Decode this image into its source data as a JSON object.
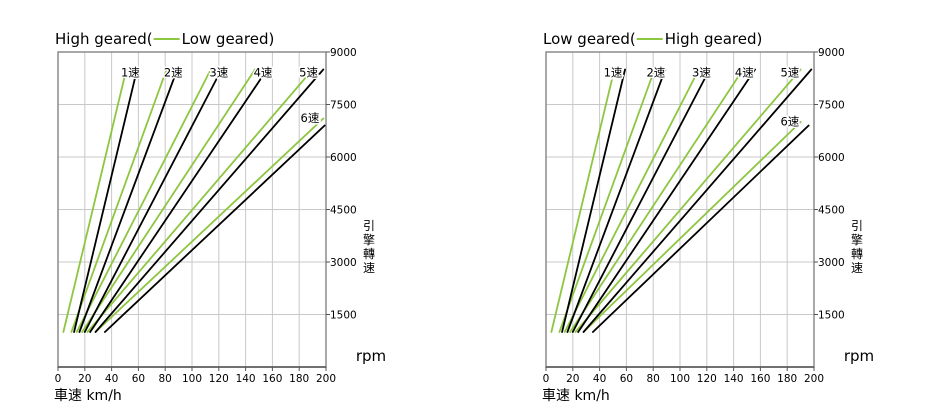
{
  "colors": {
    "high_geared": "#000000",
    "low_geared": "#8dc63f",
    "grid": "#c8c8c8",
    "frame": "#8c8c8c"
  },
  "chart_data": [
    {
      "type": "line",
      "title_primary": "High geared(",
      "title_secondary": "Low geared)",
      "xlabel": "車速 km/h",
      "ylabel_chars": [
        "引",
        "擎",
        "轉",
        "速"
      ],
      "ylabel_unit": "rpm",
      "xlim": [
        0,
        200
      ],
      "ylim": [
        0,
        9000
      ],
      "xticks": [
        "0",
        "20",
        "40",
        "60",
        "80",
        "100",
        "120",
        "140",
        "160",
        "180",
        "200"
      ],
      "yticks": [
        "1500",
        "3000",
        "4500",
        "6000",
        "7500",
        "9000"
      ],
      "grid": true,
      "gear_labels": [
        {
          "text": "1速",
          "x": 54,
          "y": 8300
        },
        {
          "text": "2速",
          "x": 86,
          "y": 8300
        },
        {
          "text": "3速",
          "x": 120,
          "y": 8300
        },
        {
          "text": "4速",
          "x": 153,
          "y": 8300
        },
        {
          "text": "5速",
          "x": 187,
          "y": 8300
        },
        {
          "text": "6速",
          "x": 188,
          "y": 7000
        }
      ],
      "series": [
        {
          "group": "high",
          "gear": "1速",
          "x": [
            12,
            59
          ],
          "y": [
            1000,
            8500
          ]
        },
        {
          "group": "high",
          "gear": "2速",
          "x": [
            16,
            89
          ],
          "y": [
            1000,
            8500
          ]
        },
        {
          "group": "high",
          "gear": "3速",
          "x": [
            20,
            122
          ],
          "y": [
            1000,
            8500
          ]
        },
        {
          "group": "high",
          "gear": "4速",
          "x": [
            24,
            156
          ],
          "y": [
            1000,
            8500
          ]
        },
        {
          "group": "high",
          "gear": "5速",
          "x": [
            28,
            198
          ],
          "y": [
            1000,
            8500
          ]
        },
        {
          "group": "high",
          "gear": "6速",
          "x": [
            35,
            199
          ],
          "y": [
            1000,
            6900
          ]
        },
        {
          "group": "low",
          "gear": "1速",
          "x": [
            4,
            51
          ],
          "y": [
            1000,
            8500
          ]
        },
        {
          "group": "low",
          "gear": "2速",
          "x": [
            10,
            81
          ],
          "y": [
            1000,
            8500
          ]
        },
        {
          "group": "low",
          "gear": "3速",
          "x": [
            14,
            114
          ],
          "y": [
            1000,
            8500
          ]
        },
        {
          "group": "low",
          "gear": "4速",
          "x": [
            18,
            147
          ],
          "y": [
            1000,
            8500
          ]
        },
        {
          "group": "low",
          "gear": "5速",
          "x": [
            22,
            190
          ],
          "y": [
            1000,
            8500
          ]
        },
        {
          "group": "low",
          "gear": "6速",
          "x": [
            28,
            198
          ],
          "y": [
            1000,
            7100
          ]
        }
      ]
    },
    {
      "type": "line",
      "title_primary": "Low geared(",
      "title_secondary": "High geared)",
      "xlabel": "車速 km/h",
      "ylabel_chars": [
        "引",
        "擎",
        "轉",
        "速"
      ],
      "ylabel_unit": "rpm",
      "xlim": [
        0,
        200
      ],
      "ylim": [
        0,
        9000
      ],
      "xticks": [
        "0",
        "20",
        "40",
        "60",
        "80",
        "100",
        "120",
        "140",
        "160",
        "180",
        "200"
      ],
      "yticks": [
        "1500",
        "3000",
        "4500",
        "6000",
        "7500",
        "9000"
      ],
      "grid": true,
      "gear_labels": [
        {
          "text": "1速",
          "x": 50,
          "y": 8300
        },
        {
          "text": "2速",
          "x": 82,
          "y": 8300
        },
        {
          "text": "3速",
          "x": 116,
          "y": 8300
        },
        {
          "text": "4速",
          "x": 148,
          "y": 8300
        },
        {
          "text": "5速",
          "x": 182,
          "y": 8300
        },
        {
          "text": "6速",
          "x": 182,
          "y": 6900
        }
      ],
      "series": [
        {
          "group": "low",
          "gear": "1速",
          "x": [
            4,
            51
          ],
          "y": [
            1000,
            8500
          ]
        },
        {
          "group": "low",
          "gear": "2速",
          "x": [
            10,
            81
          ],
          "y": [
            1000,
            8500
          ]
        },
        {
          "group": "low",
          "gear": "3速",
          "x": [
            14,
            114
          ],
          "y": [
            1000,
            8500
          ]
        },
        {
          "group": "low",
          "gear": "4速",
          "x": [
            18,
            147
          ],
          "y": [
            1000,
            8500
          ]
        },
        {
          "group": "low",
          "gear": "5速",
          "x": [
            22,
            190
          ],
          "y": [
            1000,
            8500
          ]
        },
        {
          "group": "low",
          "gear": "6速",
          "x": [
            28,
            190
          ],
          "y": [
            1000,
            7000
          ]
        },
        {
          "group": "high",
          "gear": "1速",
          "x": [
            12,
            59
          ],
          "y": [
            1000,
            8500
          ]
        },
        {
          "group": "high",
          "gear": "2速",
          "x": [
            16,
            89
          ],
          "y": [
            1000,
            8500
          ]
        },
        {
          "group": "high",
          "gear": "3速",
          "x": [
            20,
            122
          ],
          "y": [
            1000,
            8500
          ]
        },
        {
          "group": "high",
          "gear": "4速",
          "x": [
            24,
            156
          ],
          "y": [
            1000,
            8500
          ]
        },
        {
          "group": "high",
          "gear": "5速",
          "x": [
            28,
            198
          ],
          "y": [
            1000,
            8500
          ]
        },
        {
          "group": "high",
          "gear": "6速",
          "x": [
            35,
            196
          ],
          "y": [
            1000,
            6900
          ]
        }
      ]
    }
  ]
}
